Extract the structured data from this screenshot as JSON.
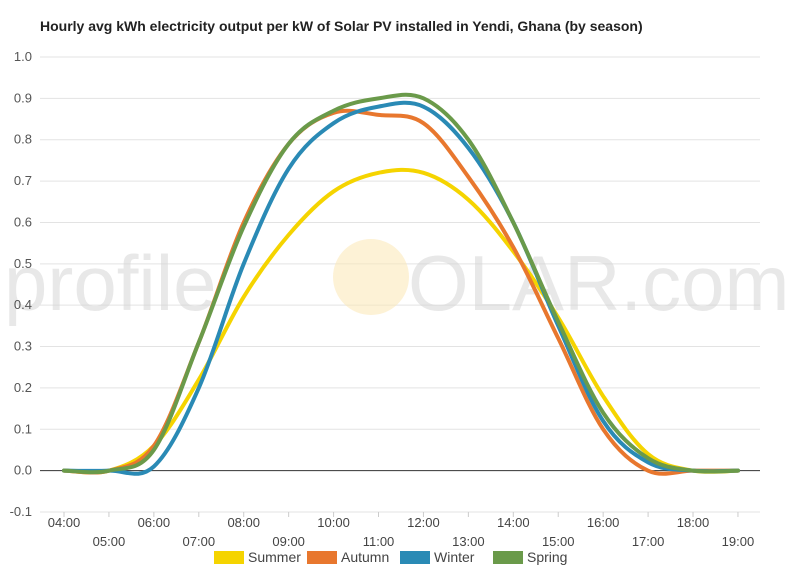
{
  "chart_data": {
    "type": "line",
    "title": "Hourly avg kWh electricity output per kW of Solar PV installed in Yendi, Ghana (by season)",
    "xlabel": "",
    "ylabel": "",
    "x": [
      "04:00",
      "05:00",
      "06:00",
      "07:00",
      "08:00",
      "09:00",
      "10:00",
      "11:00",
      "12:00",
      "13:00",
      "14:00",
      "15:00",
      "16:00",
      "17:00",
      "18:00",
      "19:00"
    ],
    "ylim": [
      -0.1,
      1.0
    ],
    "yticks": [
      "1.0",
      "0.9",
      "0.8",
      "0.7",
      "0.6",
      "0.5",
      "0.4",
      "0.3",
      "0.2",
      "0.1",
      "0.0",
      "-0.1"
    ],
    "grid": true,
    "legend_position": "bottom",
    "watermark": {
      "left": "profile",
      "sun_letter": "S",
      "right": "OLAR.com"
    },
    "series": [
      {
        "name": "Summer",
        "color": "#f5d400",
        "values": [
          0.0,
          0.0,
          0.06,
          0.22,
          0.42,
          0.57,
          0.675,
          0.72,
          0.72,
          0.655,
          0.53,
          0.37,
          0.18,
          0.04,
          0.0,
          0.0
        ]
      },
      {
        "name": "Autumn",
        "color": "#e8772e",
        "values": [
          0.0,
          0.0,
          0.06,
          0.31,
          0.6,
          0.79,
          0.865,
          0.86,
          0.84,
          0.71,
          0.54,
          0.32,
          0.1,
          0.0,
          0.0,
          0.0
        ]
      },
      {
        "name": "Winter",
        "color": "#2a8ab5",
        "values": [
          0.0,
          0.0,
          0.01,
          0.2,
          0.5,
          0.73,
          0.84,
          0.88,
          0.88,
          0.78,
          0.6,
          0.35,
          0.12,
          0.02,
          0.0,
          0.0
        ]
      },
      {
        "name": "Spring",
        "color": "#6a9a4a",
        "values": [
          0.0,
          0.0,
          0.05,
          0.31,
          0.59,
          0.79,
          0.87,
          0.9,
          0.9,
          0.8,
          0.6,
          0.36,
          0.14,
          0.03,
          0.0,
          0.0
        ]
      }
    ]
  }
}
